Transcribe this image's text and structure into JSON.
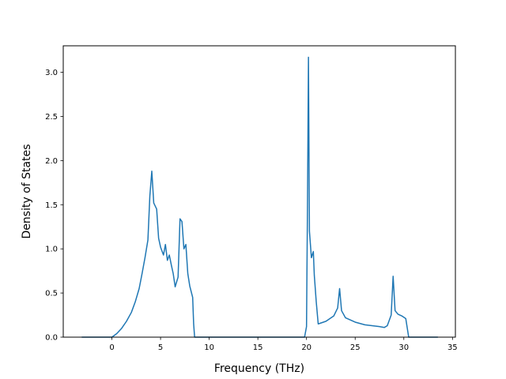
{
  "chart_data": {
    "type": "line",
    "title": "",
    "xlabel": "Frequency (THz)",
    "ylabel": "Density of States",
    "xlim": [
      -5.0,
      35.3
    ],
    "ylim": [
      0.0,
      3.3
    ],
    "xticks": [
      0,
      5,
      10,
      15,
      20,
      25,
      30,
      35
    ],
    "xtick_labels": [
      "0",
      "5",
      "10",
      "15",
      "20",
      "25",
      "30",
      "35"
    ],
    "yticks": [
      0.0,
      0.5,
      1.0,
      1.5,
      2.0,
      2.5,
      3.0
    ],
    "ytick_labels": [
      "0.0",
      "0.5",
      "1.0",
      "1.5",
      "2.0",
      "2.5",
      "3.0"
    ],
    "grid": false,
    "legend": "none",
    "color": "#1f77b4",
    "series": [
      {
        "x": [
          -3.1,
          0.0,
          0.5,
          1.0,
          1.5,
          2.0,
          2.4,
          2.8,
          3.1,
          3.4,
          3.7,
          3.9,
          4.1,
          4.3,
          4.6,
          4.8,
          5.0,
          5.3,
          5.5,
          5.7,
          5.9,
          6.1,
          6.3,
          6.5,
          6.8,
          7.0,
          7.2,
          7.4,
          7.6,
          7.8,
          8.0,
          8.3,
          8.4,
          8.5,
          10.0,
          15.0,
          19.8,
          20.0,
          20.1,
          20.2,
          20.3,
          20.5,
          20.7,
          20.8,
          21.0,
          21.2,
          22.0,
          22.8,
          23.2,
          23.4,
          23.6,
          24.0,
          25.0,
          26.0,
          27.5,
          28.0,
          28.3,
          28.7,
          28.9,
          29.1,
          29.4,
          29.8,
          30.2,
          30.5,
          33.5
        ],
        "y": [
          0.0,
          0.0,
          0.04,
          0.1,
          0.18,
          0.28,
          0.4,
          0.55,
          0.72,
          0.9,
          1.1,
          1.6,
          1.88,
          1.52,
          1.45,
          1.12,
          1.02,
          0.93,
          1.05,
          0.87,
          0.93,
          0.82,
          0.72,
          0.57,
          0.68,
          1.34,
          1.31,
          1.0,
          1.05,
          0.72,
          0.58,
          0.45,
          0.15,
          0.0,
          0.0,
          0.0,
          0.0,
          0.12,
          1.5,
          3.17,
          1.2,
          0.9,
          0.97,
          0.7,
          0.4,
          0.15,
          0.18,
          0.24,
          0.33,
          0.55,
          0.3,
          0.22,
          0.17,
          0.14,
          0.12,
          0.11,
          0.13,
          0.25,
          0.69,
          0.3,
          0.26,
          0.24,
          0.21,
          0.0,
          0.0
        ]
      }
    ]
  }
}
